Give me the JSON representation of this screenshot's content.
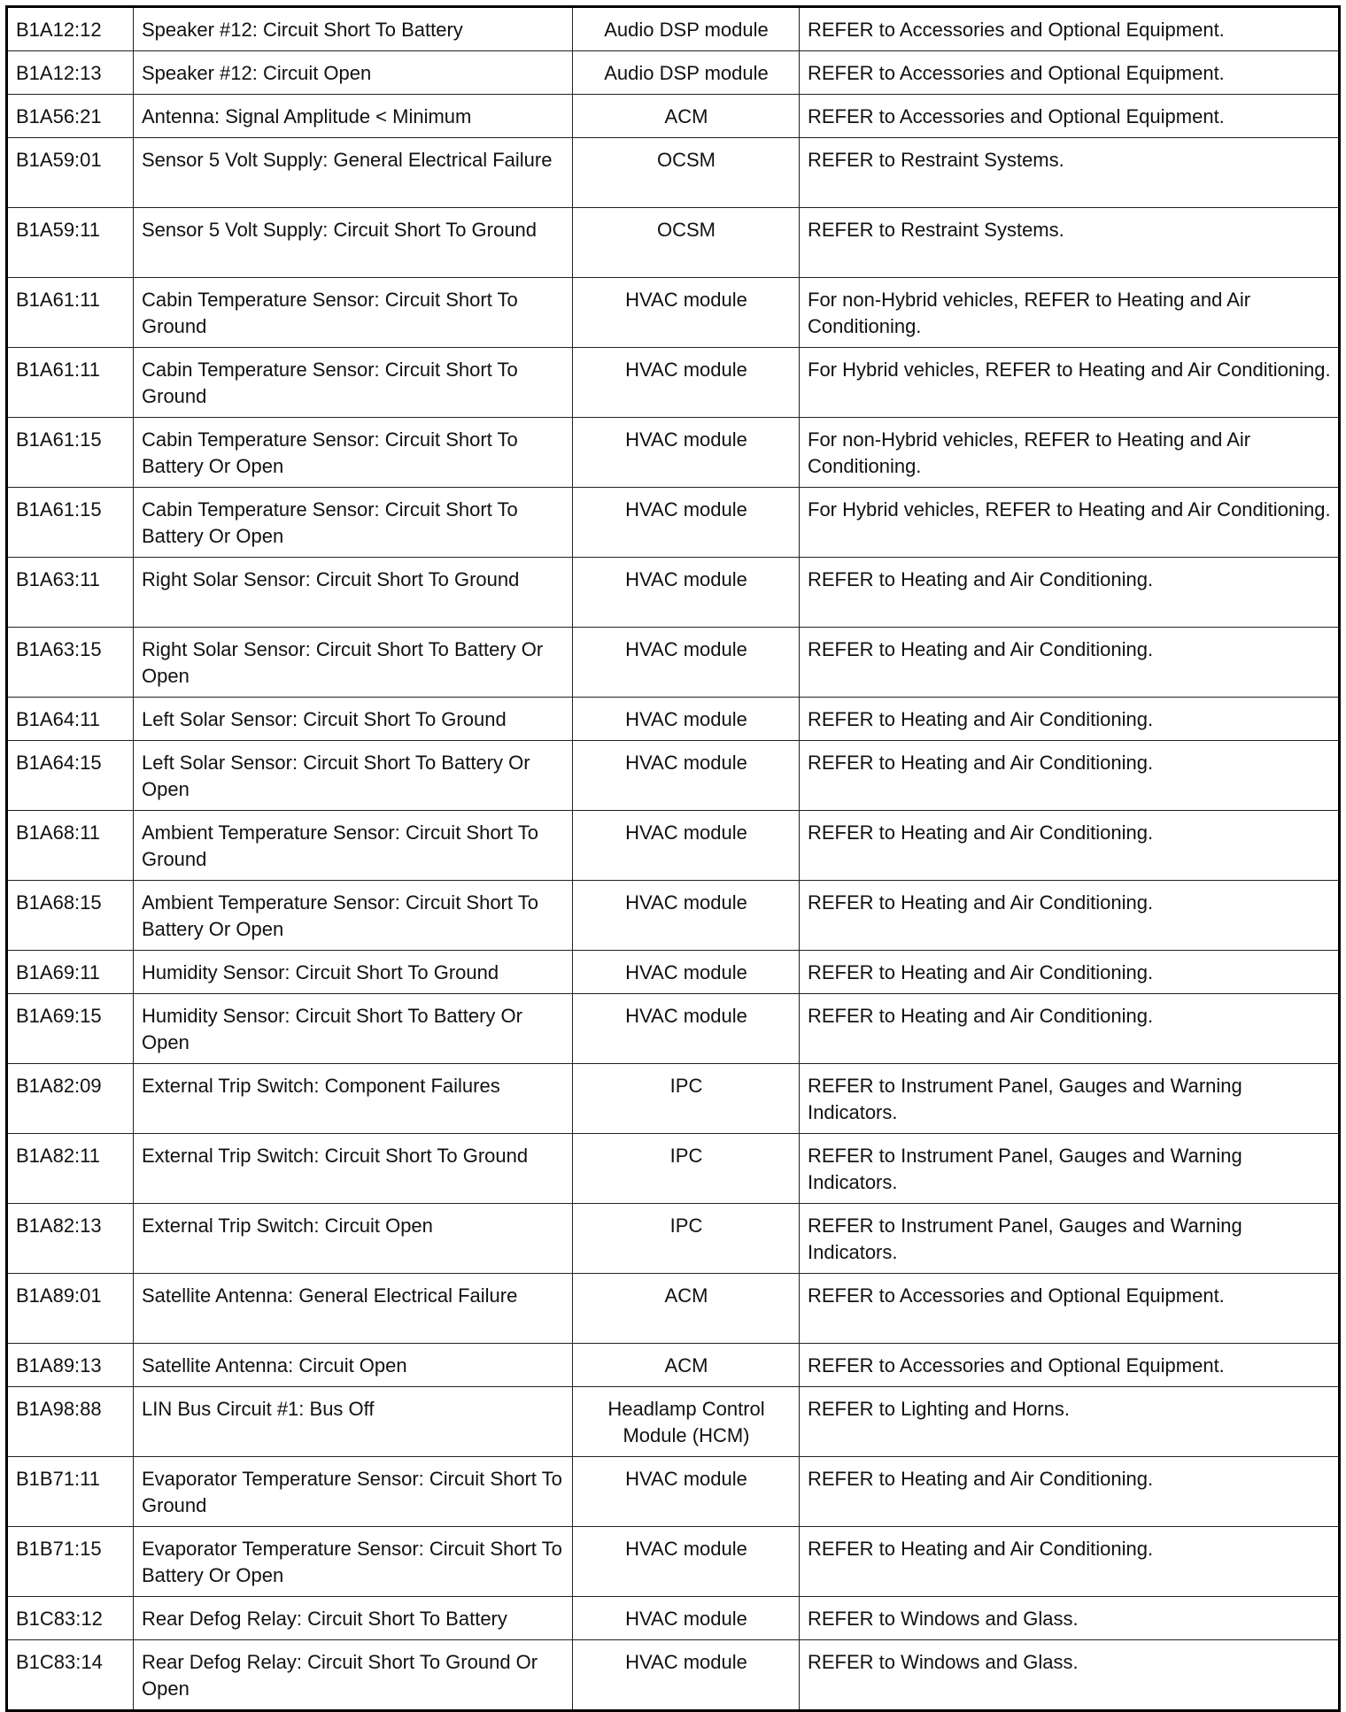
{
  "rows": [
    {
      "code": "B1A12:12",
      "description": "Speaker #12: Circuit Short To Battery",
      "module": "Audio DSP module",
      "action": "REFER to Accessories and Optional Equipment."
    },
    {
      "code": "B1A12:13",
      "description": "Speaker #12: Circuit Open",
      "module": "Audio DSP module",
      "action": "REFER to Accessories and Optional Equipment."
    },
    {
      "code": "B1A56:21",
      "description": "Antenna: Signal Amplitude < Minimum",
      "module": "ACM",
      "action": "REFER to Accessories and Optional Equipment."
    },
    {
      "code": "B1A59:01",
      "description": "Sensor 5 Volt Supply: General Electrical Failure",
      "module": "OCSM",
      "action": "REFER to Restraint Systems."
    },
    {
      "code": "B1A59:11",
      "description": "Sensor 5 Volt Supply: Circuit Short To Ground",
      "module": "OCSM",
      "action": "REFER to Restraint Systems."
    },
    {
      "code": "B1A61:11",
      "description": "Cabin Temperature Sensor: Circuit Short To Ground",
      "module": "HVAC module",
      "action": "For non-Hybrid vehicles, REFER to Heating and Air Conditioning."
    },
    {
      "code": "B1A61:11",
      "description": "Cabin Temperature Sensor: Circuit Short To Ground",
      "module": "HVAC module",
      "action": "For Hybrid vehicles, REFER to Heating and Air Conditioning."
    },
    {
      "code": "B1A61:15",
      "description": "Cabin Temperature Sensor: Circuit Short To Battery Or Open",
      "module": "HVAC module",
      "action": "For non-Hybrid vehicles, REFER to Heating and Air Conditioning."
    },
    {
      "code": "B1A61:15",
      "description": "Cabin Temperature Sensor: Circuit Short To Battery Or Open",
      "module": "HVAC module",
      "action": "For Hybrid vehicles, REFER to Heating and Air Conditioning."
    },
    {
      "code": "B1A63:11",
      "description": "Right Solar Sensor: Circuit Short To Ground",
      "module": "HVAC module",
      "action": "REFER to Heating and Air Conditioning."
    },
    {
      "code": "B1A63:15",
      "description": "Right Solar Sensor: Circuit Short To Battery Or Open",
      "module": "HVAC module",
      "action": "REFER to Heating and Air Conditioning."
    },
    {
      "code": "B1A64:11",
      "description": "Left Solar Sensor: Circuit Short To Ground",
      "module": "HVAC module",
      "action": "REFER to Heating and Air Conditioning."
    },
    {
      "code": "B1A64:15",
      "description": "Left Solar Sensor: Circuit Short To Battery Or Open",
      "module": "HVAC module",
      "action": "REFER to Heating and Air Conditioning."
    },
    {
      "code": "B1A68:11",
      "description": "Ambient Temperature Sensor: Circuit Short To Ground",
      "module": "HVAC module",
      "action": "REFER to Heating and Air Conditioning."
    },
    {
      "code": "B1A68:15",
      "description": "Ambient Temperature Sensor: Circuit Short To Battery Or Open",
      "module": "HVAC module",
      "action": "REFER to Heating and Air Conditioning."
    },
    {
      "code": "B1A69:11",
      "description": "Humidity Sensor: Circuit Short To Ground",
      "module": "HVAC module",
      "action": "REFER to Heating and Air Conditioning."
    },
    {
      "code": "B1A69:15",
      "description": "Humidity Sensor: Circuit Short To Battery Or Open",
      "module": "HVAC module",
      "action": "REFER to Heating and Air Conditioning."
    },
    {
      "code": "B1A82:09",
      "description": "External Trip Switch: Component Failures",
      "module": "IPC",
      "action": "REFER to Instrument Panel, Gauges and Warning Indicators."
    },
    {
      "code": "B1A82:11",
      "description": "External Trip Switch: Circuit Short To Ground",
      "module": "IPC",
      "action": "REFER to Instrument Panel, Gauges and Warning Indicators."
    },
    {
      "code": "B1A82:13",
      "description": "External Trip Switch: Circuit Open",
      "module": "IPC",
      "action": "REFER to Instrument Panel, Gauges and Warning Indicators."
    },
    {
      "code": "B1A89:01",
      "description": "Satellite Antenna: General Electrical Failure",
      "module": "ACM",
      "action": "REFER to Accessories and Optional Equipment."
    },
    {
      "code": "B1A89:13",
      "description": "Satellite Antenna: Circuit Open",
      "module": "ACM",
      "action": "REFER to Accessories and Optional Equipment."
    },
    {
      "code": "B1A98:88",
      "description": "LIN Bus Circuit #1: Bus Off",
      "module": "Headlamp Control Module (HCM)",
      "action": "REFER to Lighting and Horns."
    },
    {
      "code": "B1B71:11",
      "description": "Evaporator Temperature Sensor: Circuit Short To Ground",
      "module": "HVAC module",
      "action": "REFER to Heating and Air Conditioning."
    },
    {
      "code": "B1B71:15",
      "description": "Evaporator Temperature Sensor: Circuit Short To Battery Or Open",
      "module": "HVAC module",
      "action": "REFER to Heating and Air Conditioning."
    },
    {
      "code": "B1C83:12",
      "description": "Rear Defog Relay: Circuit Short To Battery",
      "module": "HVAC module",
      "action": "REFER to Windows and Glass."
    },
    {
      "code": "B1C83:14",
      "description": "Rear Defog Relay: Circuit Short To Ground Or Open",
      "module": "HVAC module",
      "action": "REFER to Windows and Glass."
    }
  ]
}
